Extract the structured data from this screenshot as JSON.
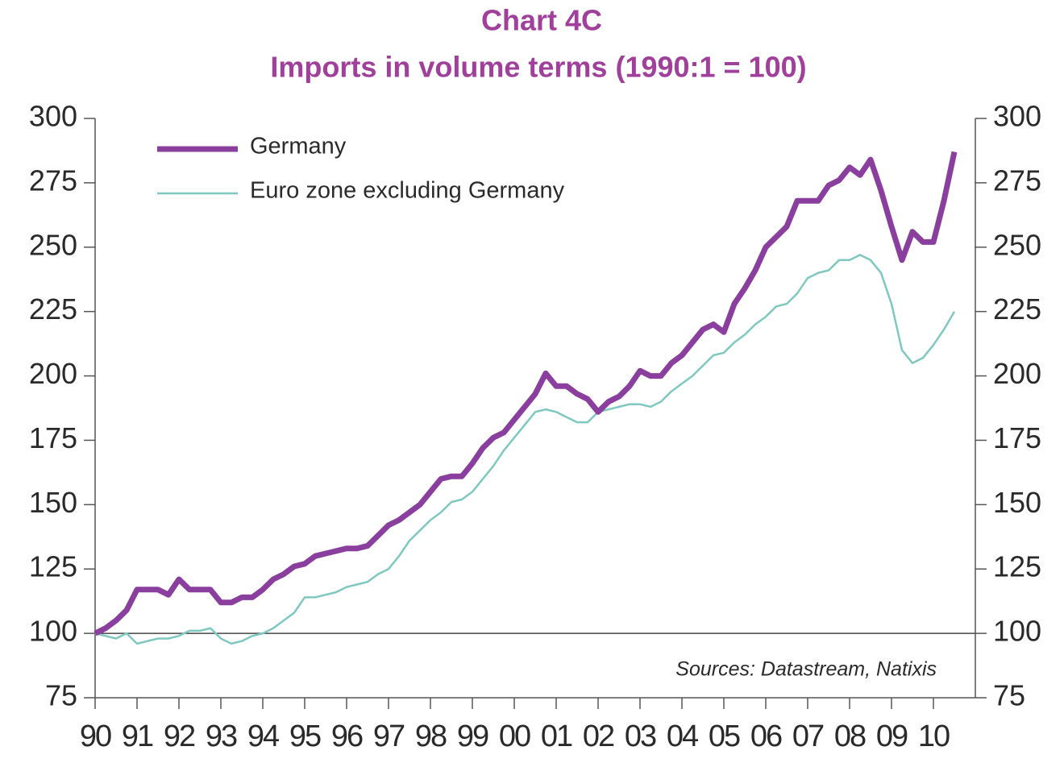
{
  "chart_data": {
    "type": "line",
    "title": "Chart 4C",
    "subtitle": "Imports in volume terms (1990:1 = 100)",
    "annotation": "Sources: Datastream, Natixis",
    "x": [
      1990,
      1990.25,
      1990.5,
      1990.75,
      1991,
      1991.25,
      1991.5,
      1991.75,
      1992,
      1992.25,
      1992.5,
      1992.75,
      1993,
      1993.25,
      1993.5,
      1993.75,
      1994,
      1994.25,
      1994.5,
      1994.75,
      1995,
      1995.25,
      1995.5,
      1995.75,
      1996,
      1996.25,
      1996.5,
      1996.75,
      1997,
      1997.25,
      1997.5,
      1997.75,
      1998,
      1998.25,
      1998.5,
      1998.75,
      1999,
      1999.25,
      1999.5,
      1999.75,
      2000,
      2000.25,
      2000.5,
      2000.75,
      2001,
      2001.25,
      2001.5,
      2001.75,
      2002,
      2002.25,
      2002.5,
      2002.75,
      2003,
      2003.25,
      2003.5,
      2003.75,
      2004,
      2004.25,
      2004.5,
      2004.75,
      2005,
      2005.25,
      2005.5,
      2005.75,
      2006,
      2006.25,
      2006.5,
      2006.75,
      2007,
      2007.25,
      2007.5,
      2007.75,
      2008,
      2008.25,
      2008.5,
      2008.75,
      2009,
      2009.25,
      2009.5,
      2009.75,
      2010,
      2010.25,
      2010.5
    ],
    "series": [
      {
        "name": "Germany",
        "color": "#8a3f9e",
        "width": 7,
        "values": [
          100,
          102,
          105,
          109,
          117,
          117,
          117,
          115,
          121,
          117,
          117,
          117,
          112,
          112,
          114,
          114,
          117,
          121,
          123,
          126,
          127,
          130,
          131,
          132,
          133,
          133,
          134,
          138,
          142,
          144,
          147,
          150,
          155,
          160,
          161,
          161,
          166,
          172,
          176,
          178,
          183,
          188,
          193,
          201,
          196,
          196,
          193,
          191,
          186,
          190,
          192,
          196,
          202,
          200,
          200,
          205,
          208,
          213,
          218,
          220,
          217,
          228,
          234,
          241,
          250,
          254,
          258,
          268,
          268,
          268,
          274,
          276,
          281,
          278,
          284,
          272,
          258,
          245,
          256,
          252,
          252,
          268,
          287
        ]
      },
      {
        "name": "Euro zone excluding Germany",
        "color": "#7fc8c0",
        "width": 2.5,
        "values": [
          100,
          99,
          98,
          100,
          96,
          97,
          98,
          98,
          99,
          101,
          101,
          102,
          98,
          96,
          97,
          99,
          100,
          102,
          105,
          108,
          114,
          114,
          115,
          116,
          118,
          119,
          120,
          123,
          125,
          130,
          136,
          140,
          144,
          147,
          151,
          152,
          155,
          160,
          165,
          171,
          176,
          181,
          186,
          187,
          186,
          184,
          182,
          182,
          186,
          187,
          188,
          189,
          189,
          188,
          190,
          194,
          197,
          200,
          204,
          208,
          209,
          213,
          216,
          220,
          223,
          227,
          228,
          232,
          238,
          240,
          241,
          245,
          245,
          247,
          245,
          240,
          228,
          210,
          205,
          207,
          212,
          218,
          225
        ]
      }
    ],
    "xlim": [
      1990,
      2011
    ],
    "xticks": [
      {
        "value": 1990,
        "label": "90"
      },
      {
        "value": 1991,
        "label": "91"
      },
      {
        "value": 1992,
        "label": "92"
      },
      {
        "value": 1993,
        "label": "93"
      },
      {
        "value": 1994,
        "label": "94"
      },
      {
        "value": 1995,
        "label": "95"
      },
      {
        "value": 1996,
        "label": "96"
      },
      {
        "value": 1997,
        "label": "97"
      },
      {
        "value": 1998,
        "label": "98"
      },
      {
        "value": 1999,
        "label": "99"
      },
      {
        "value": 2000,
        "label": "00"
      },
      {
        "value": 2001,
        "label": "01"
      },
      {
        "value": 2002,
        "label": "02"
      },
      {
        "value": 2003,
        "label": "03"
      },
      {
        "value": 2004,
        "label": "04"
      },
      {
        "value": 2005,
        "label": "05"
      },
      {
        "value": 2006,
        "label": "06"
      },
      {
        "value": 2007,
        "label": "07"
      },
      {
        "value": 2008,
        "label": "08"
      },
      {
        "value": 2009,
        "label": "09"
      },
      {
        "value": 2010,
        "label": "10"
      }
    ],
    "ylim": [
      75,
      300
    ],
    "yticks": [
      75,
      100,
      125,
      150,
      175,
      200,
      225,
      250,
      275,
      300
    ],
    "y2lim": [
      75,
      300
    ],
    "y2ticks": [
      75,
      100,
      125,
      150,
      175,
      200,
      225,
      250,
      275,
      300
    ],
    "reference_line": 100,
    "legend": "upper left"
  }
}
